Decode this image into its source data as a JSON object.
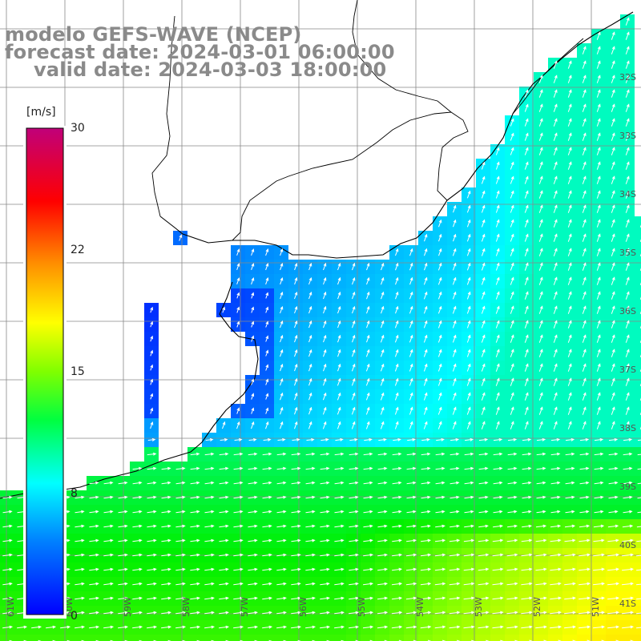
{
  "header": {
    "model": "modelo GEFS-WAVE (NCEP)",
    "forecast": "forecast date: 2024-03-01 06:00:00",
    "valid": "valid date: 2024-03-03 18:00:00"
  },
  "colorbar": {
    "unit": "[m/s]",
    "ticks": [
      "30",
      "22",
      "15",
      "8",
      "0"
    ],
    "tick_values": [
      30,
      22,
      15,
      8,
      0
    ],
    "range": [
      0,
      30
    ],
    "colors": [
      "#0000ff",
      "#00a0ff",
      "#00ffff",
      "#00ee00",
      "#ffff00",
      "#ff8000",
      "#ff0000",
      "#c0007a"
    ]
  },
  "map": {
    "lat_labels": [
      "32S",
      "33S",
      "34S",
      "35S",
      "36S",
      "37S",
      "38S",
      "39S",
      "40S",
      "41S"
    ],
    "lon_labels": [
      "61W",
      "60W",
      "59W",
      "58W",
      "57W",
      "56W",
      "55W",
      "54W",
      "53W",
      "52W",
      "51W"
    ],
    "land_color": "#ffffff",
    "grid_color": "#888888",
    "arrow_color": "#ffffff"
  }
}
